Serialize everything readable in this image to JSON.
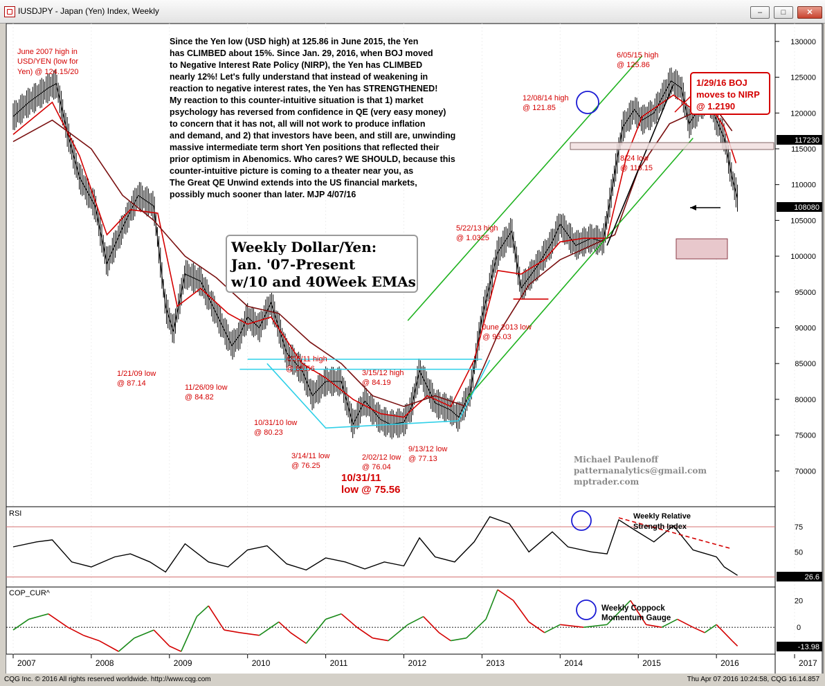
{
  "window": {
    "title": "IUSDJPY - Japan (Yen) Index, Weekly",
    "min": "–",
    "max": "□",
    "close": "✕"
  },
  "status": {
    "copyright": "CQG Inc. © 2016 All rights reserved worldwide. http://www.cqg.com",
    "timestamp": "Thu Apr 07 2016 10:24:58, CQG 16.14.857"
  },
  "colors": {
    "price": "#000000",
    "ema10": "#d40000",
    "ema40": "#7a1010",
    "green": "#1fb21f",
    "cyan": "#2fd0e8",
    "annot": "#d40000",
    "rsi_ref": "#d47070"
  },
  "chart_data": [
    {
      "type": "line",
      "title": "Weekly Dollar/Yen: Jan. '07-Present w/10 and 40Week EMAs",
      "ylim": [
        65000,
        132500
      ],
      "x_ticks": [
        "2007",
        "2008",
        "2009",
        "2010",
        "2011",
        "2012",
        "2013",
        "2014",
        "2015",
        "2016",
        "2017"
      ],
      "y_ticks": [
        70000,
        75000,
        80000,
        85000,
        90000,
        95000,
        100000,
        105000,
        110000,
        115000,
        120000,
        125000,
        130000
      ],
      "last_value_label": "108080",
      "marker_label": "117230",
      "series": [
        {
          "name": "USDJPY",
          "x": [
            2007.0,
            2007.2,
            2007.45,
            2007.55,
            2007.7,
            2007.85,
            2008.05,
            2008.2,
            2008.3,
            2008.4,
            2008.6,
            2008.8,
            2008.95,
            2009.05,
            2009.2,
            2009.4,
            2009.6,
            2009.8,
            2009.9,
            2010.0,
            2010.15,
            2010.3,
            2010.5,
            2010.7,
            2010.83,
            2011.0,
            2011.2,
            2011.35,
            2011.5,
            2011.7,
            2011.83,
            2012.0,
            2012.1,
            2012.2,
            2012.4,
            2012.6,
            2012.7,
            2012.85,
            2013.0,
            2013.2,
            2013.38,
            2013.5,
            2013.7,
            2013.9,
            2014.0,
            2014.2,
            2014.4,
            2014.55,
            2014.65,
            2014.8,
            2014.95,
            2015.05,
            2015.2,
            2015.42,
            2015.55,
            2015.65,
            2015.8,
            2015.9,
            2016.0,
            2016.1,
            2016.2,
            2016.27
          ],
          "values": [
            119500,
            121500,
            123500,
            124100,
            117000,
            111000,
            107000,
            99000,
            101500,
            104000,
            108500,
            107000,
            93000,
            89500,
            97500,
            96500,
            92000,
            87500,
            89000,
            91500,
            90000,
            93500,
            86500,
            84000,
            80500,
            82500,
            82500,
            76500,
            79800,
            77200,
            76500,
            76800,
            79000,
            84000,
            79500,
            78500,
            77500,
            81000,
            91500,
            100500,
            103500,
            95500,
            98500,
            102000,
            104500,
            101500,
            102500,
            102000,
            108500,
            118000,
            120500,
            119000,
            120000,
            124500,
            123500,
            118500,
            121000,
            122000,
            119000,
            116500,
            111000,
            108080
          ]
        },
        {
          "name": "10 Week EMA",
          "x": [
            2007.0,
            2007.5,
            2007.85,
            2008.2,
            2008.5,
            2008.85,
            2009.1,
            2009.4,
            2009.75,
            2010.0,
            2010.3,
            2010.7,
            2011.0,
            2011.35,
            2011.7,
            2012.0,
            2012.3,
            2012.6,
            2012.9,
            2013.2,
            2013.5,
            2013.8,
            2014.0,
            2014.3,
            2014.6,
            2014.85,
            2015.05,
            2015.45,
            2015.7,
            2015.95,
            2016.1,
            2016.25
          ],
          "values": [
            117000,
            121500,
            114000,
            103000,
            106500,
            106000,
            93000,
            95500,
            92000,
            90500,
            91500,
            85000,
            83000,
            80000,
            78000,
            77500,
            80500,
            79000,
            85500,
            98000,
            97500,
            99500,
            102000,
            102500,
            102500,
            114000,
            119500,
            122500,
            120500,
            120500,
            118000,
            113000
          ]
        },
        {
          "name": "40 Week EMA",
          "x": [
            2007.0,
            2007.5,
            2008.0,
            2008.4,
            2008.8,
            2009.2,
            2009.6,
            2010.0,
            2010.4,
            2010.8,
            2011.2,
            2011.6,
            2012.0,
            2012.4,
            2012.8,
            2013.2,
            2013.6,
            2014.0,
            2014.4,
            2014.7,
            2015.0,
            2015.4,
            2015.8,
            2016.0,
            2016.2
          ],
          "values": [
            116000,
            119000,
            115000,
            108500,
            105000,
            100000,
            97000,
            93000,
            92000,
            88000,
            85000,
            80500,
            79000,
            80500,
            79000,
            89000,
            96000,
            99500,
            101500,
            103000,
            112000,
            118500,
            120500,
            120500,
            117500
          ]
        }
      ],
      "lines": [
        {
          "name": "upper channel",
          "color": "green",
          "x": [
            2012.05,
            2015.05
          ],
          "y": [
            91000,
            128000
          ]
        },
        {
          "name": "lower channel",
          "color": "green",
          "x": [
            2012.8,
            2015.7
          ],
          "y": [
            80000,
            116500
          ]
        },
        {
          "name": "cyan support",
          "color": "cyan",
          "x": [
            2010.25,
            2011.0,
            2012.7,
            2013.1
          ],
          "y": [
            85000,
            76000,
            77000,
            85500
          ]
        },
        {
          "name": "cyan resistance 1",
          "color": "cyan",
          "x": [
            2010.0,
            2013.0
          ],
          "y": [
            85600,
            85600
          ]
        },
        {
          "name": "cyan resistance 2",
          "color": "cyan",
          "x": [
            2009.9,
            2013.0
          ],
          "y": [
            84200,
            84200
          ]
        },
        {
          "name": "June 2013 low line",
          "color": "annot",
          "x": [
            2013.4,
            2013.85
          ],
          "y": [
            94000,
            94000
          ]
        },
        {
          "name": "trend 1",
          "color": "black",
          "x": [
            2014.6,
            2015.45
          ],
          "y": [
            101500,
            124000
          ]
        }
      ],
      "annotations": {
        "main_text": [
          "Since the Yen low (USD high) at 125.86 in June 2015, the Yen",
          "has CLIMBED about 15%. Since Jan. 29, 2016, when BOJ moved",
          "to Negative Interest Rate Policy (NIRP), the Yen has CLIMBED",
          "nearly 12%!  Let's fully understand that instead of weakening in",
          "reaction to negative interest rates, the Yen has STRENGTHENED!",
          "My reaction to this counter-intuitive situation is that 1) market",
          "psychology has reversed from confidence in QE (very easy money)",
          "to concern that it has not, all will not work to produce inflation",
          "and demand, and 2) that investors have been, and still are, unwinding",
          "massive intermediate term short Yen positions that reflected their",
          "prior optimism in Abenomics. Who cares? WE SHOULD, because this",
          "counter-intuitive picture is coming to a theater near you, as",
          "The Great QE Unwind extends into the US financial markets,",
          "possibly much sooner than later. MJP  4/07/16"
        ],
        "title_box": [
          "Weekly Dollar/Yen:",
          "Jan. '07-Present",
          "w/10 and 40Week EMAs"
        ],
        "june2007": [
          "June 2007 high in",
          "USD/YEN (low for",
          "Yen) @ 124.15/20"
        ],
        "l_1_21_09": [
          "1/21/09  low",
          "@ 87.14"
        ],
        "l_11_26_09": [
          "11/26/09 low",
          "@ 84.82"
        ],
        "l_10_31_10": [
          "10/31/10 low",
          "@ 80.23"
        ],
        "l_3_14_11": [
          "3/14/11 low",
          "@ 76.25"
        ],
        "l_4_06_11": [
          "4/06/11 high",
          "@ 85.56"
        ],
        "l_3_15_12": [
          "3/15/12 high",
          "@ 84.19"
        ],
        "l_2_02_12": [
          "2/02/12 low",
          "@ 76.04"
        ],
        "l_9_13_12": [
          "9/13/12 low",
          "@ 77.13"
        ],
        "l_10_31_11": [
          "10/31/11",
          "low @ 75.56"
        ],
        "l_5_22_13": [
          "5/22/13 high",
          "@ 1.0325"
        ],
        "l_june2013": [
          "June 2013 low",
          "@ 95.03"
        ],
        "l_12_08_14": [
          "12/08/14 high",
          "@ 121.85"
        ],
        "l_6_05_15": [
          "6/05/15 high",
          "@ 125.86"
        ],
        "l_8_24": [
          "8/24 low",
          "@ 116.15"
        ],
        "l_boj": [
          "1/29/16 BOJ",
          "moves to NIRP",
          "@ 1.2190"
        ],
        "author": [
          "Michael Paulenoff",
          "patternanalytics@gmail.com",
          "mptrader.com"
        ]
      }
    },
    {
      "type": "line",
      "title": "RSI",
      "ylim": [
        15,
        95
      ],
      "y_ticks": [
        50,
        75
      ],
      "reference_line": 75,
      "last_value_label": "26.6",
      "annotation": [
        "Weekly Relative",
        "Strength Index"
      ],
      "series": [
        {
          "name": "RSI",
          "x": [
            2007.0,
            2007.3,
            2007.5,
            2007.75,
            2008.0,
            2008.3,
            2008.5,
            2008.75,
            2008.95,
            2009.2,
            2009.5,
            2009.75,
            2010.0,
            2010.25,
            2010.5,
            2010.75,
            2011.0,
            2011.25,
            2011.5,
            2011.75,
            2012.0,
            2012.2,
            2012.4,
            2012.65,
            2012.9,
            2013.1,
            2013.35,
            2013.6,
            2013.9,
            2014.1,
            2014.4,
            2014.6,
            2014.75,
            2014.95,
            2015.2,
            2015.45,
            2015.7,
            2016.0,
            2016.1,
            2016.27
          ],
          "values": [
            55,
            60,
            62,
            40,
            35,
            45,
            48,
            40,
            30,
            58,
            40,
            35,
            52,
            56,
            38,
            32,
            44,
            40,
            33,
            40,
            36,
            64,
            45,
            40,
            60,
            85,
            78,
            50,
            70,
            55,
            50,
            48,
            82,
            72,
            60,
            76,
            52,
            45,
            35,
            26.6
          ]
        }
      ],
      "trendline": {
        "x": [
          2014.75,
          2016.2
        ],
        "y": [
          84,
          53
        ]
      }
    },
    {
      "type": "line",
      "title": "COP_CUR^",
      "ylim": [
        -20,
        30
      ],
      "y_ticks": [
        0,
        20
      ],
      "last_value_label": "-13.98",
      "annotation": [
        "Weekly Coppock",
        "Momentum Gauge"
      ],
      "series": [
        {
          "name": "Coppock",
          "x": [
            2007.0,
            2007.2,
            2007.45,
            2007.7,
            2007.9,
            2008.1,
            2008.35,
            2008.55,
            2008.8,
            2009.0,
            2009.15,
            2009.35,
            2009.5,
            2009.7,
            2009.9,
            2010.15,
            2010.4,
            2010.55,
            2010.75,
            2011.0,
            2011.2,
            2011.4,
            2011.6,
            2011.8,
            2012.05,
            2012.25,
            2012.45,
            2012.6,
            2012.8,
            2013.05,
            2013.2,
            2013.4,
            2013.6,
            2013.8,
            2014.0,
            2014.3,
            2014.6,
            2014.8,
            2014.9,
            2015.1,
            2015.3,
            2015.5,
            2015.7,
            2015.85,
            2016.0,
            2016.2,
            2016.27
          ],
          "values": [
            -2,
            6,
            10,
            0,
            -6,
            -10,
            -18,
            -8,
            -2,
            -14,
            -18,
            8,
            16,
            -2,
            -4,
            -6,
            4,
            -4,
            -12,
            6,
            10,
            0,
            -8,
            -10,
            2,
            8,
            -4,
            -10,
            -8,
            6,
            28,
            20,
            4,
            -4,
            2,
            0,
            2,
            14,
            20,
            2,
            0,
            6,
            0,
            -4,
            2,
            -10,
            -13.98
          ]
        }
      ]
    }
  ]
}
